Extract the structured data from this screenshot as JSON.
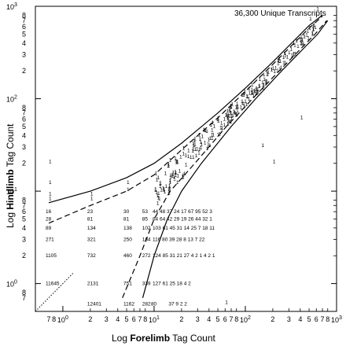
{
  "chart_data": {
    "type": "scatter",
    "title": "",
    "annotation": "36,300 Unique Transcripts",
    "xlabel": {
      "prefix": "Log ",
      "bold": "Forelimb",
      "suffix": " Tag Count"
    },
    "ylabel": {
      "prefix": "Log ",
      "bold": "Hindlimb",
      "suffix": " Tag Count"
    },
    "x_scale": "log",
    "y_scale": "log",
    "xlim": [
      0.5,
      1000
    ],
    "ylim": [
      0.5,
      1000
    ],
    "x_decades": [
      {
        "value": 1,
        "label": "10",
        "exp": "0"
      },
      {
        "value": 10,
        "label": "10",
        "exp": "1"
      },
      {
        "value": 100,
        "label": "10",
        "exp": "2"
      },
      {
        "value": 1000,
        "label": "10",
        "exp": "3"
      }
    ],
    "y_decades": [
      {
        "value": 1,
        "label": "10",
        "exp": "0"
      },
      {
        "value": 10,
        "label": "10",
        "exp": "1"
      },
      {
        "value": 100,
        "label": "10",
        "exp": "2"
      },
      {
        "value": 1000,
        "label": "10",
        "exp": "3"
      }
    ],
    "minor_tick_labels": [
      "2",
      "3",
      "4",
      "5",
      "6",
      "7",
      "8"
    ],
    "lower_minor_labels": [
      "7",
      "8"
    ],
    "count_grid": [
      {
        "y": 6,
        "cells": [
          {
            "x": 0.7,
            "t": "16"
          },
          {
            "x": 2,
            "t": "23"
          },
          {
            "x": 5,
            "t": "30"
          },
          {
            "x": 8,
            "t": "53"
          }
        ]
      },
      {
        "y": 5,
        "cells": [
          {
            "x": 0.7,
            "t": "28"
          },
          {
            "x": 2,
            "t": "81"
          },
          {
            "x": 5,
            "t": "81"
          },
          {
            "x": 8,
            "t": "85"
          }
        ]
      },
      {
        "y": 4,
        "cells": [
          {
            "x": 0.7,
            "t": "89"
          },
          {
            "x": 2,
            "t": "134"
          },
          {
            "x": 5,
            "t": "138"
          },
          {
            "x": 8,
            "t": "102"
          }
        ]
      },
      {
        "y": 3,
        "cells": [
          {
            "x": 0.7,
            "t": "271"
          },
          {
            "x": 2,
            "t": "321"
          },
          {
            "x": 5,
            "t": "250"
          },
          {
            "x": 8,
            "t": "184"
          }
        ]
      },
      {
        "y": 2,
        "cells": [
          {
            "x": 0.7,
            "t": "1105"
          },
          {
            "x": 2,
            "t": "732"
          },
          {
            "x": 5,
            "t": "460"
          },
          {
            "x": 8,
            "t": "272"
          }
        ]
      },
      {
        "y": 1,
        "cells": [
          {
            "x": 0.7,
            "t": "11645"
          },
          {
            "x": 2,
            "t": "2131"
          },
          {
            "x": 5,
            "t": "751"
          },
          {
            "x": 8,
            "t": "339"
          }
        ]
      },
      {
        "y": 0.6,
        "cells": [
          {
            "x": 2,
            "t": "12401"
          },
          {
            "x": 5,
            "t": "1162"
          },
          {
            "x": 8,
            "t": "282"
          },
          {
            "x": 10,
            "t": "80"
          }
        ]
      }
    ],
    "row_strings": [
      {
        "y": 6,
        "x": 10,
        "t": "44 48 37 24 17 67 95 52 3"
      },
      {
        "y": 5,
        "x": 10,
        "t": "84 64 42 29 19 26 44 32 1"
      },
      {
        "y": 4,
        "x": 10,
        "t": "103 61 45 31 14 25 7 18 11"
      },
      {
        "y": 3,
        "x": 10,
        "t": "116 80 39 28 8 13 7 22"
      },
      {
        "y": 2,
        "x": 10,
        "t": "124 85 31 21 27 4 2 1 4 2 1"
      },
      {
        "y": 1,
        "x": 10,
        "t": "127 61 25 18 4 2"
      },
      {
        "y": 0.6,
        "x": 15,
        "t": "37 9 2 2"
      }
    ],
    "isolated_ones": [
      {
        "x": 0.7,
        "y": 20
      },
      {
        "x": 0.7,
        "y": 12
      },
      {
        "x": 0.7,
        "y": 9
      },
      {
        "x": 0.7,
        "y": 8
      },
      {
        "x": 2,
        "y": 9
      },
      {
        "x": 2,
        "y": 8
      },
      {
        "x": 5,
        "y": 12
      },
      {
        "x": 5,
        "y": 10
      },
      {
        "x": 60,
        "y": 0.6
      },
      {
        "x": 200,
        "y": 20
      },
      {
        "x": 150,
        "y": 30
      },
      {
        "x": 400,
        "y": 60
      },
      {
        "x": 600,
        "y": 900
      },
      {
        "x": 500,
        "y": 700
      }
    ],
    "dense_ones_note": "1",
    "curves": [
      {
        "name": "upper-solid",
        "style": "solid",
        "points": [
          [
            0.7,
            7.5
          ],
          [
            2,
            10
          ],
          [
            5,
            14
          ],
          [
            10,
            20
          ],
          [
            20,
            33
          ],
          [
            50,
            70
          ],
          [
            100,
            130
          ],
          [
            200,
            250
          ],
          [
            500,
            620
          ],
          [
            700,
            800
          ]
        ]
      },
      {
        "name": "lower-solid",
        "style": "solid",
        "points": [
          [
            7.5,
            0.7
          ],
          [
            10,
            2
          ],
          [
            14,
            5
          ],
          [
            20,
            10
          ],
          [
            33,
            20
          ],
          [
            70,
            50
          ],
          [
            130,
            100
          ],
          [
            250,
            200
          ],
          [
            620,
            500
          ],
          [
            800,
            700
          ]
        ]
      },
      {
        "name": "upper-dashed",
        "style": "dashed",
        "points": [
          [
            0.7,
            4.5
          ],
          [
            2,
            7
          ],
          [
            5,
            10
          ],
          [
            10,
            15
          ],
          [
            20,
            28
          ],
          [
            50,
            62
          ],
          [
            100,
            120
          ],
          [
            200,
            235
          ],
          [
            500,
            580
          ],
          [
            700,
            780
          ]
        ]
      },
      {
        "name": "lower-dashed",
        "style": "dashed",
        "points": [
          [
            4.5,
            0.7
          ],
          [
            7,
            2
          ],
          [
            10,
            5
          ],
          [
            15,
            10
          ],
          [
            28,
            20
          ],
          [
            62,
            50
          ],
          [
            120,
            100
          ],
          [
            235,
            200
          ],
          [
            580,
            500
          ],
          [
            780,
            700
          ]
        ]
      },
      {
        "name": "diagonal-dotted",
        "style": "dotted",
        "points": [
          [
            0.5,
            0.5
          ],
          [
            1.3,
            1.3
          ]
        ]
      }
    ]
  }
}
